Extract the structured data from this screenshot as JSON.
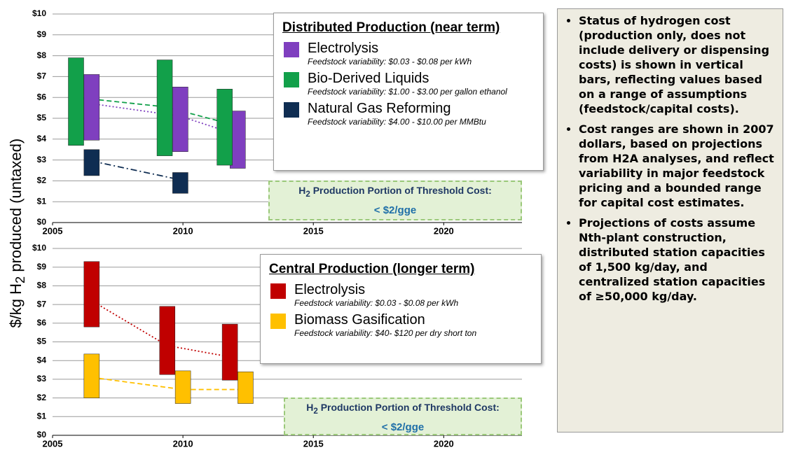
{
  "y_label": {
    "before": "$/kg H",
    "sub": "2",
    "after": " produced (untaxed)"
  },
  "chart_data": [
    {
      "type": "floating_bar",
      "xlim": [
        2005,
        2023
      ],
      "xticks": [
        2005,
        2010,
        2015,
        2020
      ],
      "ylim": [
        0,
        10
      ],
      "yticks": [
        {
          "value": 0,
          "label": "$0"
        },
        {
          "value": 1,
          "label": "$1"
        },
        {
          "value": 2,
          "label": "$2"
        },
        {
          "value": 3,
          "label": "$3"
        },
        {
          "value": 4,
          "label": "$4"
        },
        {
          "value": 5,
          "label": "$5"
        },
        {
          "value": 6,
          "label": "$6"
        },
        {
          "value": 7,
          "label": "$7"
        },
        {
          "value": 8,
          "label": "$8"
        },
        {
          "value": 9,
          "label": "$9"
        },
        {
          "value": 10,
          "label": "$10"
        }
      ],
      "grid": true,
      "legend": {
        "title": "Distributed Production (near term)"
      },
      "series": [
        {
          "name": "Electrolysis",
          "note": "Feedstock variability: $0.03 - $0.08 per kWh",
          "color": "#7f3fbf",
          "line_style": "dotted",
          "x": [
            2006.5,
            2009.9,
            2012.1
          ],
          "low": [
            3.95,
            3.4,
            2.6
          ],
          "high": [
            7.1,
            6.5,
            5.35
          ],
          "trend": [
            5.7,
            5.1,
            4.2
          ]
        },
        {
          "name": "Bio-Derived Liquids",
          "note": "Feedstock variability:  $1.00 - $3.00 per gallon ethanol",
          "color": "#12a04a",
          "line_style": "dashed",
          "x": [
            2005.9,
            2009.3,
            2011.6
          ],
          "low": [
            3.7,
            3.2,
            2.75
          ],
          "high": [
            7.9,
            7.8,
            6.4
          ],
          "trend": [
            6.0,
            5.55,
            4.8
          ]
        },
        {
          "name": "Natural Gas Reforming",
          "note": "Feedstock variability: $4.00 - $10.00 per MMBtu",
          "color": "#0f2d52",
          "line_style": "dash-dot",
          "x": [
            2006.5,
            2009.9
          ],
          "low": [
            2.25,
            1.4
          ],
          "high": [
            3.5,
            2.4
          ],
          "trend": [
            2.95,
            2.05
          ]
        }
      ],
      "threshold": {
        "before": "H",
        "sub": "2",
        "after": " Production Portion of Threshold Cost:",
        "target": "< $2/gge"
      }
    },
    {
      "type": "floating_bar",
      "xlim": [
        2005,
        2023
      ],
      "xticks": [
        2005,
        2010,
        2015,
        2020
      ],
      "ylim": [
        0,
        10
      ],
      "yticks": [
        {
          "value": 0,
          "label": "$0"
        },
        {
          "value": 1,
          "label": "$1"
        },
        {
          "value": 2,
          "label": "$2"
        },
        {
          "value": 3,
          "label": "$3"
        },
        {
          "value": 4,
          "label": "$4"
        },
        {
          "value": 5,
          "label": "$5"
        },
        {
          "value": 6,
          "label": "$6"
        },
        {
          "value": 7,
          "label": "$7"
        },
        {
          "value": 8,
          "label": "$8"
        },
        {
          "value": 9,
          "label": "$9"
        },
        {
          "value": 10,
          "label": "$10"
        }
      ],
      "grid": true,
      "legend": {
        "title": "Central Production (longer term)"
      },
      "series": [
        {
          "name": "Electrolysis",
          "note": "Feedstock variability: $0.03 - $0.08 per kWh",
          "color": "#c00000",
          "line_style": "dotted",
          "x": [
            2006.5,
            2009.4,
            2011.8
          ],
          "low": [
            5.8,
            3.25,
            2.95
          ],
          "high": [
            9.3,
            6.9,
            5.95
          ],
          "trend": [
            7.2,
            4.8,
            4.2
          ]
        },
        {
          "name": "Biomass Gasification",
          "note": "Feedstock variability: $40- $120 per dry short ton",
          "color": "#ffc000",
          "line_style": "dashed",
          "x": [
            2006.5,
            2010.0,
            2012.4
          ],
          "low": [
            2.0,
            1.7,
            1.7
          ],
          "high": [
            4.35,
            3.45,
            3.4
          ],
          "trend": [
            3.1,
            2.45,
            2.45
          ]
        }
      ],
      "threshold": {
        "before": "H",
        "sub": "2",
        "after": " Production Portion of Threshold Cost:",
        "target": "< $2/gge"
      }
    }
  ],
  "notes": {
    "bullets": [
      "Status of hydrogen cost (production only, does not include delivery or dispensing costs) is shown in vertical bars, reflecting values based on a range of assumptions (feedstock/capital costs).",
      "Cost ranges  are shown in 2007 dollars, based on projections from H2A analyses, and reflect variability in major feedstock pricing and a bounded range for capital cost estimates.",
      "Projections of costs assume Nth-plant construction, distributed station capacities of 1,500 kg/day, and centralized station capacities of ≥50,000 kg/day."
    ]
  }
}
